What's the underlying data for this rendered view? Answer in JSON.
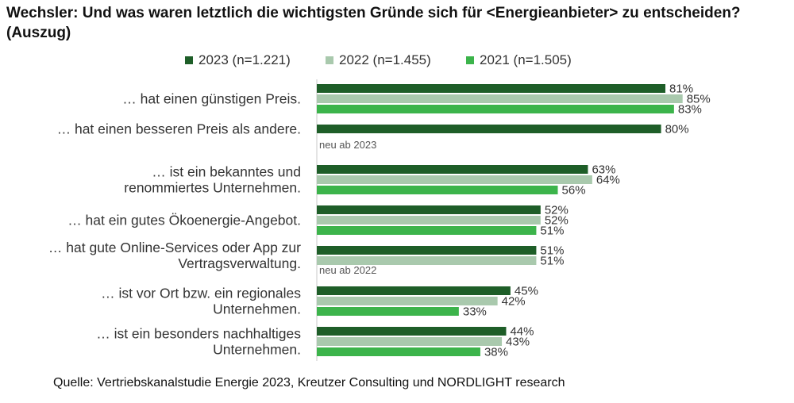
{
  "title_line1": "Wechsler: Und was waren letztlich die wichtigsten Gründe sich für <Energieanbieter> zu entscheiden?",
  "title_line2": "(Auszug)",
  "source": "Quelle: Vertriebskanalstudie Energie 2023, Kreutzer Consulting und NORDLIGHT research",
  "chart_data": {
    "type": "bar",
    "orientation": "horizontal",
    "xlim": [
      0,
      100
    ],
    "grid": false,
    "legend_position": "top",
    "value_suffix": "%",
    "categories": [
      [
        "… hat einen günstigen Preis."
      ],
      [
        "… hat einen besseren Preis als andere."
      ],
      [
        "… ist ein bekanntes und",
        "renommiertes Unternehmen."
      ],
      [
        "… hat ein gutes Ökoenergie-Angebot."
      ],
      [
        "… hat gute Online-Services oder App zur",
        "Vertragsverwaltung."
      ],
      [
        "… ist vor Ort bzw. ein regionales",
        "Unternehmen."
      ],
      [
        "… ist ein besonders nachhaltiges",
        "Unternehmen."
      ]
    ],
    "series": [
      {
        "name": "2023 (n=1.221)",
        "color": "#1e5e28",
        "values": [
          81,
          80,
          63,
          52,
          51,
          45,
          44
        ]
      },
      {
        "name": "2022 (n=1.455)",
        "color": "#a9c9ad",
        "values": [
          85,
          null,
          64,
          52,
          51,
          42,
          43
        ]
      },
      {
        "name": "2021 (n=1.505)",
        "color": "#3cb44b",
        "values": [
          83,
          null,
          56,
          51,
          null,
          33,
          38
        ]
      }
    ],
    "notes": [
      null,
      "neu ab 2023",
      null,
      null,
      "neu ab 2022",
      null,
      null
    ]
  }
}
